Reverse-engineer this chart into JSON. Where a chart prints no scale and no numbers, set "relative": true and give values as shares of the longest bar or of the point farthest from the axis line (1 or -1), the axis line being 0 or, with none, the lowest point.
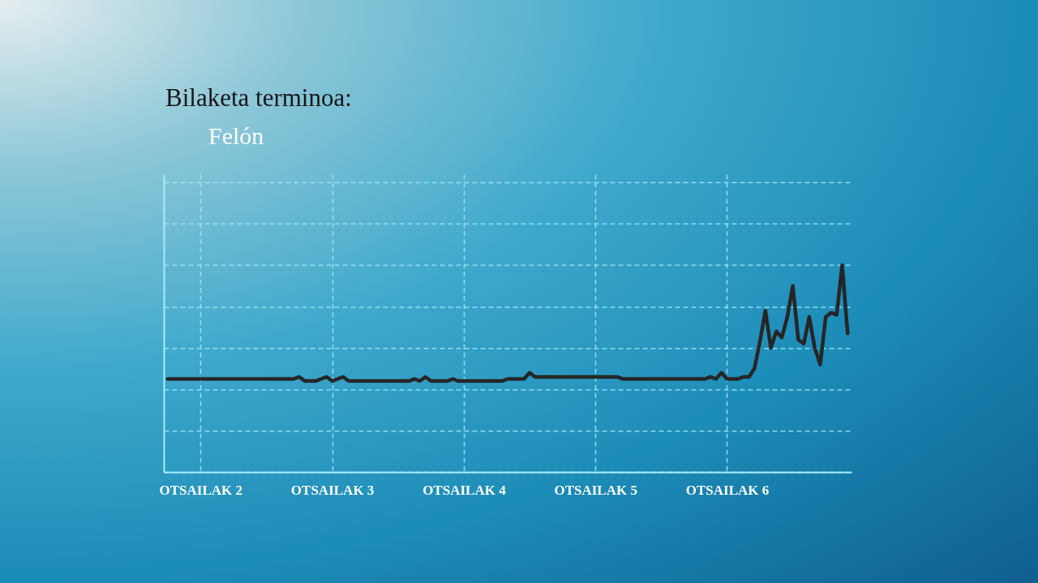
{
  "chart_data": {
    "type": "line",
    "legend_title": "Bilaketa terminoa:",
    "relative": true,
    "categories": [
      null,
      null,
      null,
      null,
      null,
      null,
      "OTSAILAK 2",
      null,
      null,
      null,
      null,
      null,
      null,
      null,
      null,
      null,
      null,
      null,
      null,
      null,
      null,
      null,
      null,
      null,
      null,
      null,
      null,
      null,
      null,
      null,
      "OTSAILAK 3",
      null,
      null,
      null,
      null,
      null,
      null,
      null,
      null,
      null,
      null,
      null,
      null,
      null,
      null,
      null,
      null,
      null,
      null,
      null,
      null,
      null,
      null,
      null,
      "OTSAILAK 4",
      null,
      null,
      null,
      null,
      null,
      null,
      null,
      null,
      null,
      null,
      null,
      null,
      null,
      null,
      null,
      null,
      null,
      null,
      null,
      null,
      null,
      null,
      null,
      "OTSAILAK 5",
      null,
      null,
      null,
      null,
      null,
      null,
      null,
      null,
      null,
      null,
      null,
      null,
      null,
      null,
      null,
      null,
      null,
      null,
      null,
      null,
      null,
      null,
      null,
      "OTSAILAK 6",
      null,
      null,
      null,
      null,
      null,
      null,
      null,
      null,
      null,
      null,
      null,
      null,
      null,
      null,
      null,
      null,
      null,
      null,
      null,
      null,
      null,
      null
    ],
    "series": [
      {
        "name": "Felón",
        "color": "#262626",
        "values": [
          0.45,
          0.45,
          0.45,
          0.45,
          0.45,
          0.45,
          0.45,
          0.45,
          0.45,
          0.45,
          0.45,
          0.45,
          0.45,
          0.45,
          0.45,
          0.45,
          0.45,
          0.45,
          0.45,
          0.45,
          0.45,
          0.45,
          0.45,
          0.45,
          0.46,
          0.44,
          0.44,
          0.44,
          0.45,
          0.46,
          0.44,
          0.45,
          0.46,
          0.44,
          0.44,
          0.44,
          0.44,
          0.44,
          0.44,
          0.44,
          0.44,
          0.44,
          0.44,
          0.44,
          0.44,
          0.45,
          0.44,
          0.46,
          0.44,
          0.44,
          0.44,
          0.44,
          0.45,
          0.44,
          0.44,
          0.44,
          0.44,
          0.44,
          0.44,
          0.44,
          0.44,
          0.44,
          0.45,
          0.45,
          0.45,
          0.45,
          0.48,
          0.46,
          0.46,
          0.46,
          0.46,
          0.46,
          0.46,
          0.46,
          0.46,
          0.46,
          0.46,
          0.46,
          0.46,
          0.46,
          0.46,
          0.46,
          0.46,
          0.45,
          0.45,
          0.45,
          0.45,
          0.45,
          0.45,
          0.45,
          0.45,
          0.45,
          0.45,
          0.45,
          0.45,
          0.45,
          0.45,
          0.45,
          0.45,
          0.46,
          0.45,
          0.48,
          0.45,
          0.45,
          0.45,
          0.46,
          0.46,
          0.5,
          0.63,
          0.78,
          0.6,
          0.68,
          0.65,
          0.75,
          0.9,
          0.64,
          0.62,
          0.75,
          0.6,
          0.52,
          0.75,
          0.77,
          0.76,
          1.0,
          0.67
        ]
      }
    ],
    "grid": true,
    "legend": "top left",
    "line_style": "solid"
  }
}
